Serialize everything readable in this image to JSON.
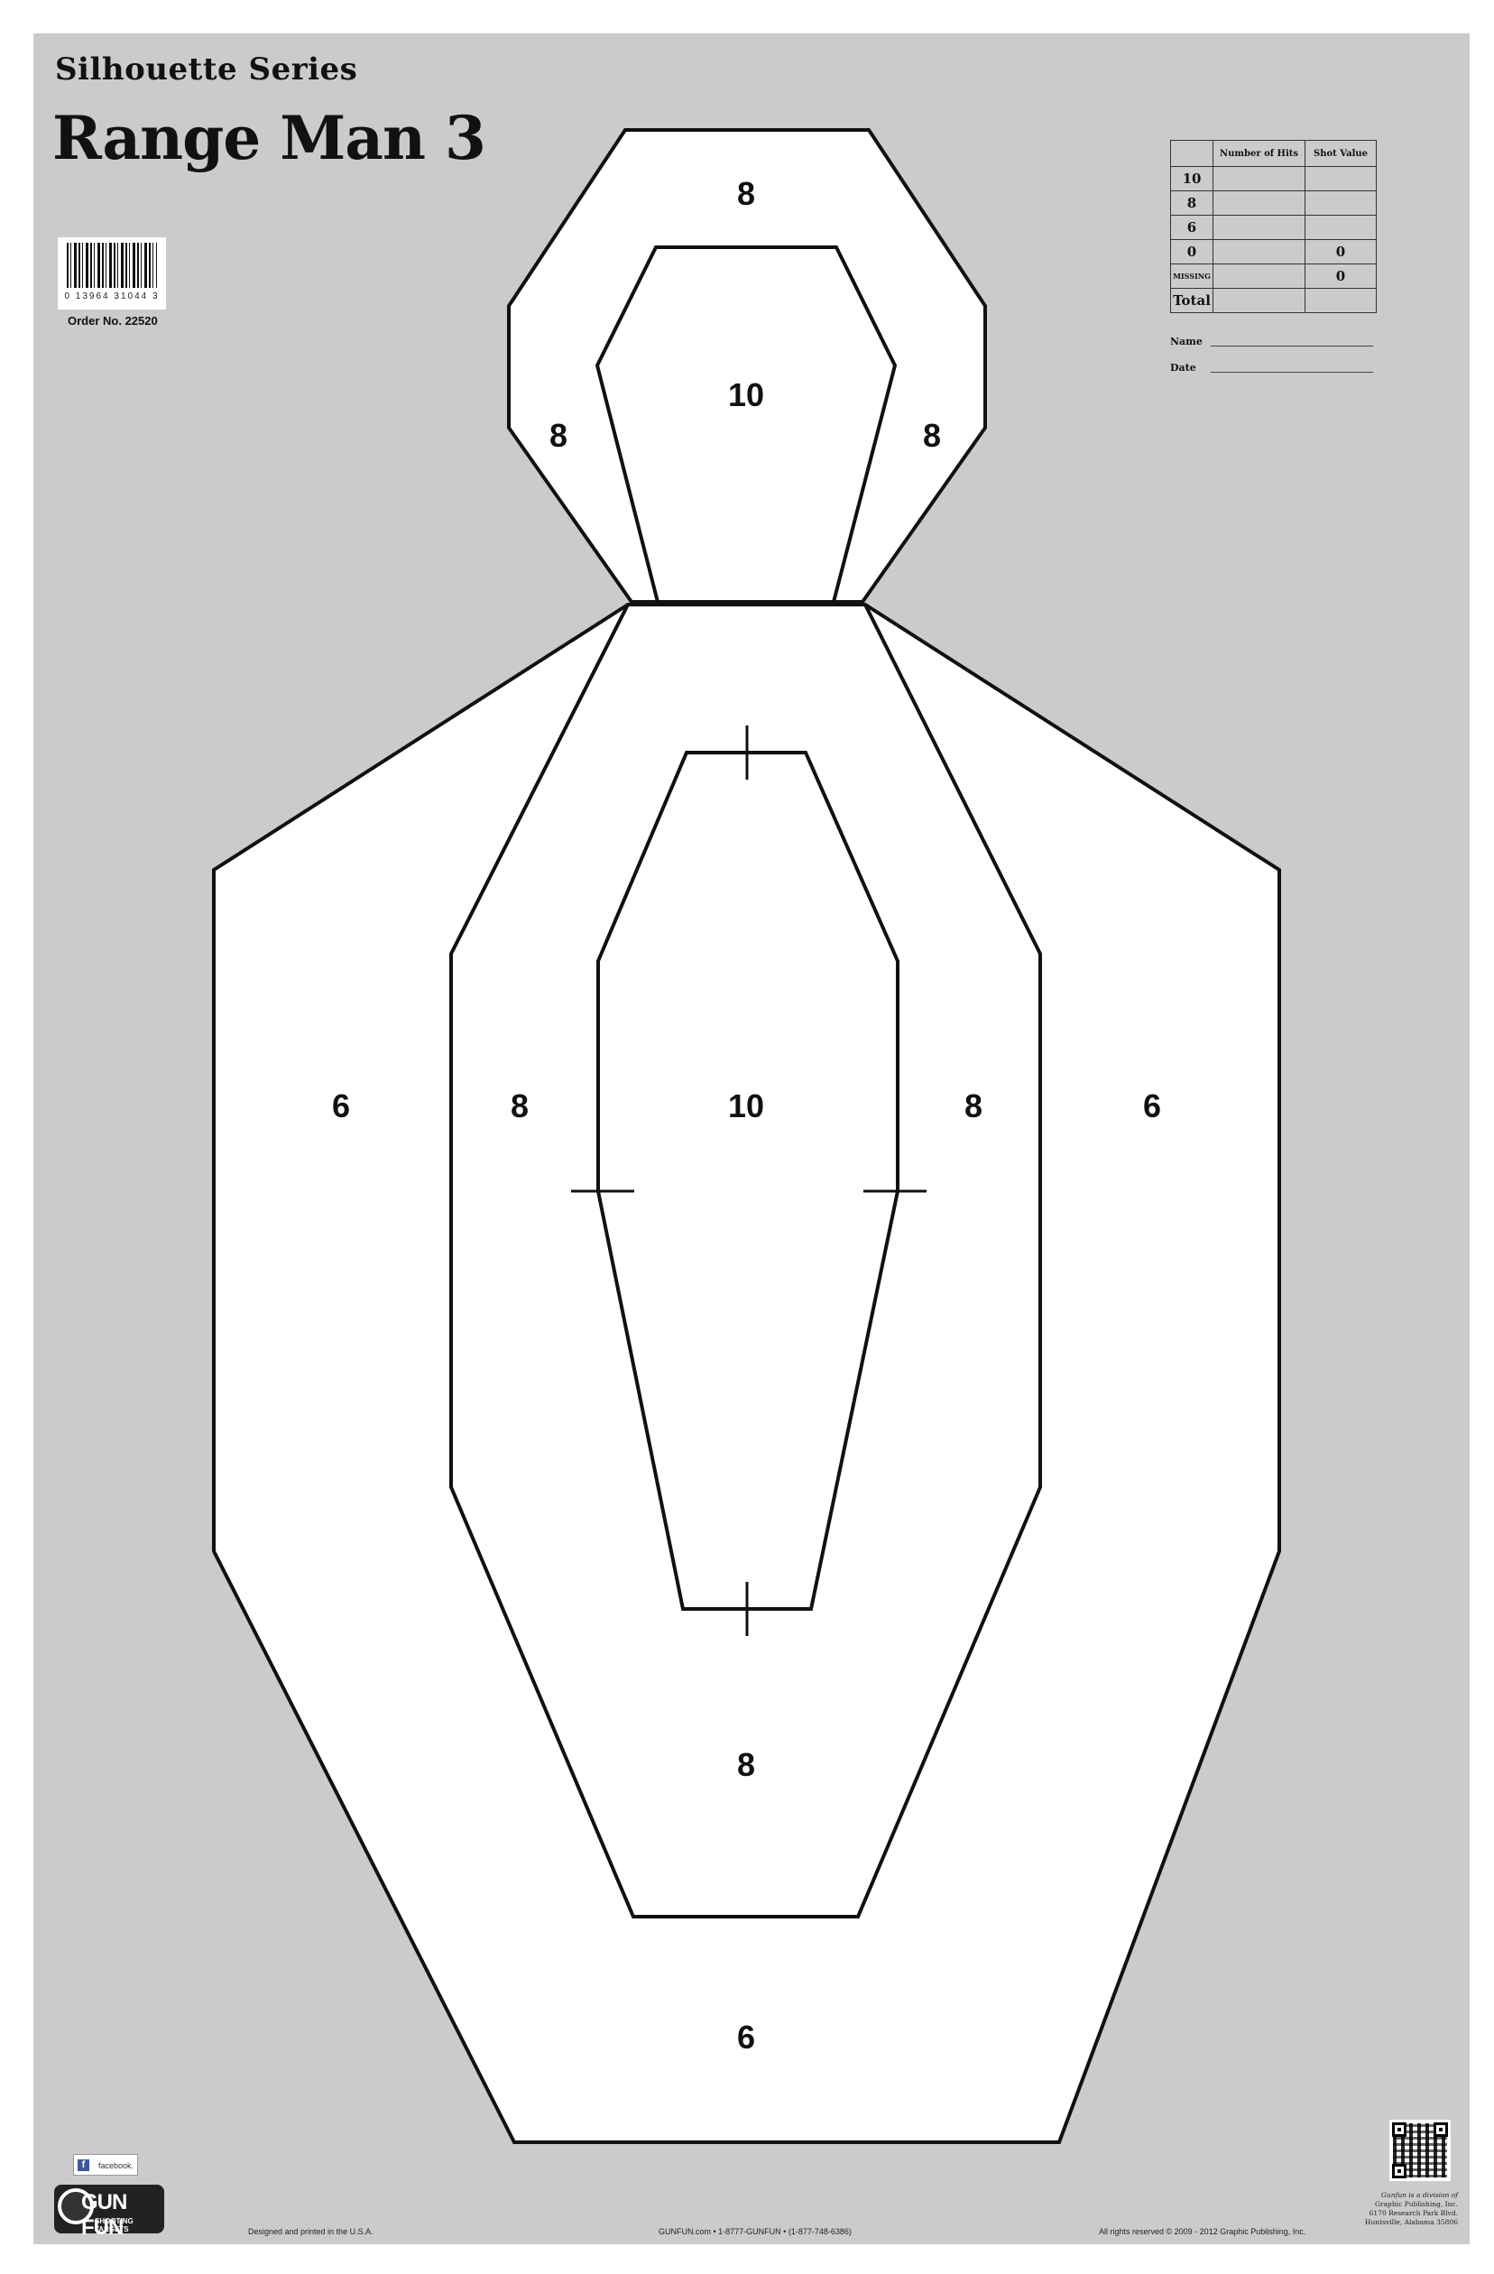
{
  "header": {
    "series": "Silhouette Series",
    "title": "Range Man 3"
  },
  "barcode": {
    "digits": "0 13964 31044 3",
    "order_no": "Order No. 22520"
  },
  "score_table": {
    "headers": [
      "",
      "Number of Hits",
      "Shot Value"
    ],
    "rows": [
      {
        "label": "10",
        "hits": "",
        "value": ""
      },
      {
        "label": "8",
        "hits": "",
        "value": ""
      },
      {
        "label": "6",
        "hits": "",
        "value": ""
      },
      {
        "label": "0",
        "hits": "",
        "value": "0"
      },
      {
        "label": "MISSING",
        "hits": "",
        "value": "0"
      },
      {
        "label": "Total",
        "hits": "",
        "value": ""
      }
    ]
  },
  "fields": {
    "name_label": "Name",
    "date_label": "Date"
  },
  "target_scores": {
    "head_top": "8",
    "head_center": "10",
    "head_left": "8",
    "head_right": "8",
    "body_outer_left": "6",
    "body_mid_left": "8",
    "body_center": "10",
    "body_mid_right": "8",
    "body_outer_right": "6",
    "body_lower_mid": "8",
    "body_bottom": "6"
  },
  "colors": {
    "background": "#cbcbcb",
    "target_fill": "#ffffff",
    "outline": "#111111"
  },
  "footer": {
    "facebook_badge": "facebook.",
    "logo_word": "GUN FUN",
    "logo_sub": "SHOOTING TARGETS",
    "designed": "Designed and printed in the U.S.A.",
    "contact": "GUNFUN.com • 1-8777-GUNFUN • (1-877-748-6386)",
    "rights": "All rights reserved © 2009 - 2012 Graphic Publishing, Inc.",
    "publisher_lines": [
      "Gunfun is a division of",
      "Graphic Publishing, Inc.",
      "6170 Research Park Blvd.",
      "Huntsville, Alabama 35806"
    ]
  }
}
